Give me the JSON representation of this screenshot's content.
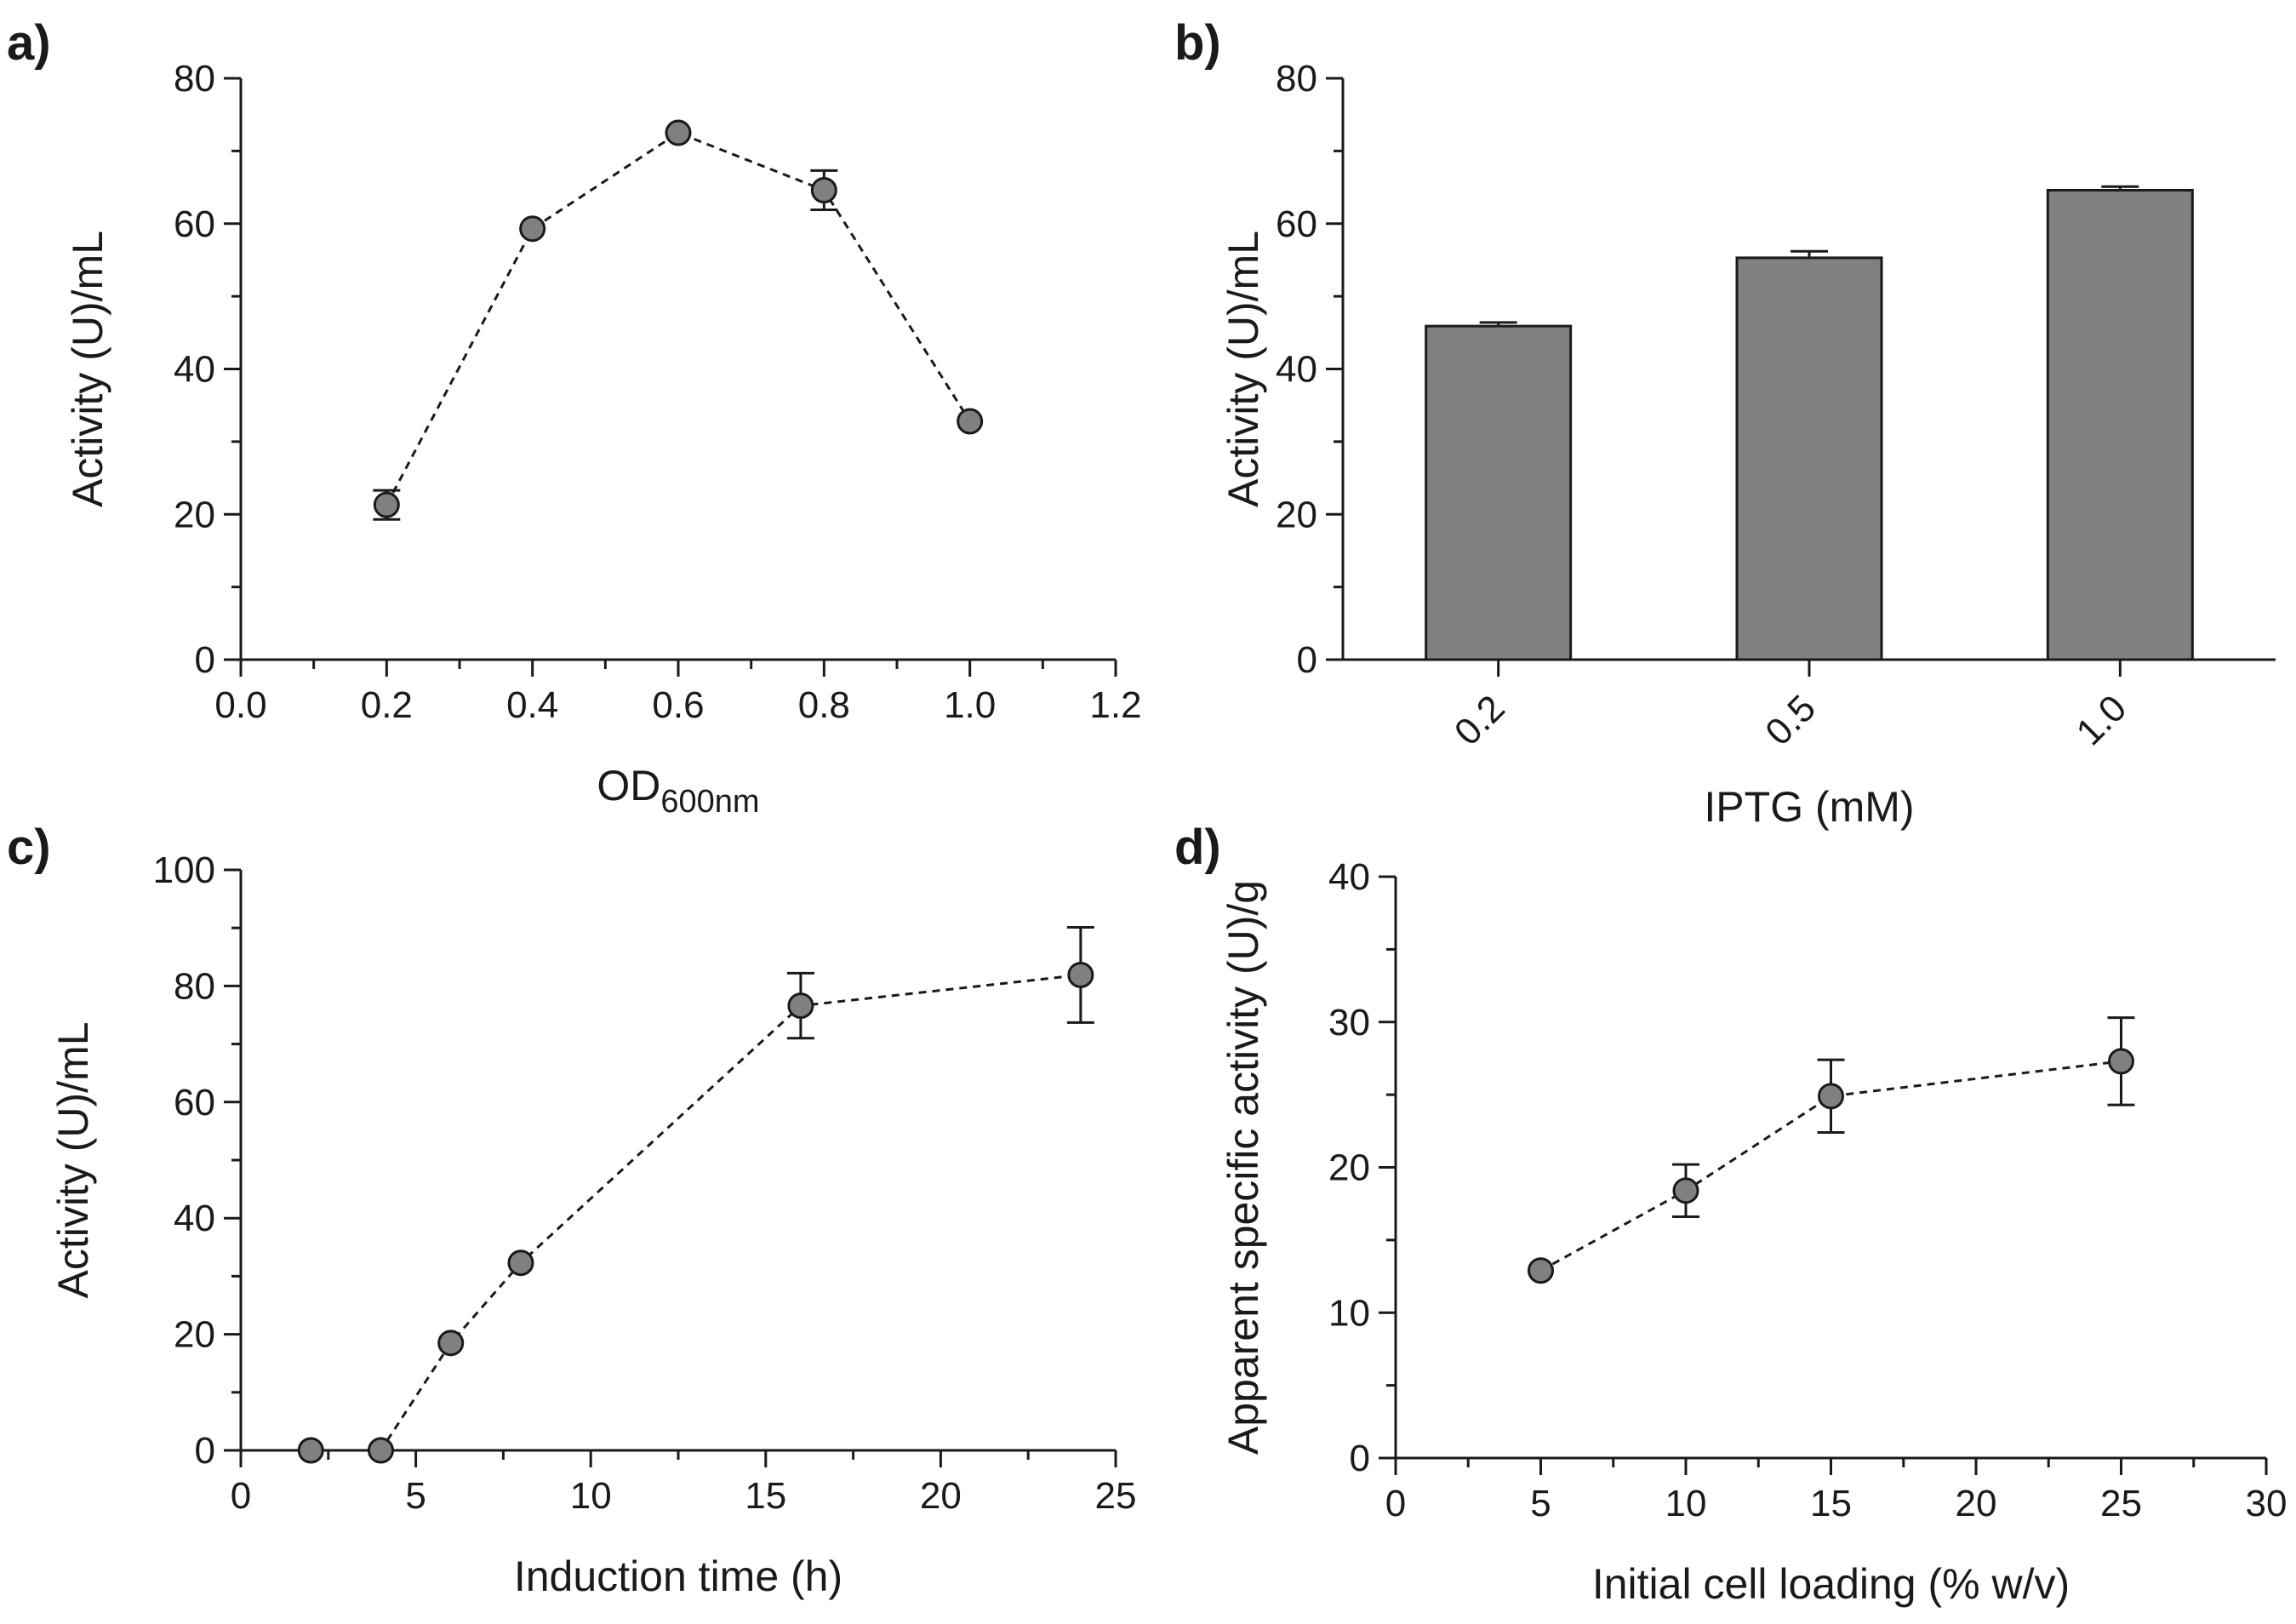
{
  "chart_data": [
    {
      "id": "a",
      "panel_label": "a)",
      "type": "line",
      "marker": "circle",
      "line_style": "dashed",
      "xlabel": "OD",
      "xlabel_sub": "600nm",
      "ylabel": "Activity (U)/mL",
      "xlim": [
        0,
        1.2
      ],
      "ylim": [
        0,
        80
      ],
      "xticks": [
        0,
        0.2,
        0.4,
        0.6,
        0.8,
        1.0,
        1.2
      ],
      "xtick_labels": [
        "0.0",
        "0.2",
        "0.4",
        "0.6",
        "0.8",
        "1.0",
        "1.2"
      ],
      "yticks": [
        0,
        20,
        40,
        60,
        80
      ],
      "ytick_labels": [
        "0",
        "20",
        "40",
        "60",
        "80"
      ],
      "x": [
        0.2,
        0.4,
        0.6,
        0.8,
        1.0
      ],
      "y": [
        21.3,
        59.3,
        72.5,
        64.6,
        32.8
      ],
      "err": [
        2.0,
        0.8,
        0.8,
        2.7,
        0.5
      ]
    },
    {
      "id": "b",
      "panel_label": "b)",
      "type": "bar",
      "xlabel": "IPTG (mM)",
      "ylabel": "Activity (U)/mL",
      "ylim": [
        0,
        80
      ],
      "yticks": [
        0,
        20,
        40,
        60,
        80
      ],
      "ytick_labels": [
        "0",
        "20",
        "40",
        "60",
        "80"
      ],
      "categories": [
        "0.2",
        "0.5",
        "1.0"
      ],
      "values": [
        45.9,
        55.3,
        64.6
      ],
      "err": [
        0.5,
        0.9,
        0.5
      ]
    },
    {
      "id": "c",
      "panel_label": "c)",
      "type": "line",
      "marker": "circle",
      "line_style": "dashed",
      "xlabel": "Induction time (h)",
      "ylabel": "Activity (U)/mL",
      "xlim": [
        0,
        25
      ],
      "ylim": [
        0,
        100
      ],
      "xticks": [
        0,
        5,
        10,
        15,
        20,
        25
      ],
      "xtick_labels": [
        "0",
        "5",
        "10",
        "15",
        "20",
        "25"
      ],
      "yticks": [
        0,
        20,
        40,
        60,
        80,
        100
      ],
      "ytick_labels": [
        "0",
        "20",
        "40",
        "60",
        "80",
        "100"
      ],
      "x": [
        2,
        4,
        6,
        8,
        16,
        24
      ],
      "y": [
        0,
        0,
        18.5,
        32.3,
        76.6,
        81.9
      ],
      "err": [
        0,
        0,
        0,
        0,
        5.6,
        8.2
      ]
    },
    {
      "id": "d",
      "panel_label": "d)",
      "type": "line",
      "marker": "circle",
      "line_style": "dashed",
      "xlabel": "Initial cell loading (% w/v)",
      "ylabel": "Apparent specific activity (U)/g",
      "xlim": [
        0,
        30
      ],
      "ylim": [
        0,
        40
      ],
      "xticks": [
        0,
        5,
        10,
        15,
        20,
        25,
        30
      ],
      "xtick_labels": [
        "0",
        "5",
        "10",
        "15",
        "20",
        "25",
        "30"
      ],
      "yticks": [
        0,
        10,
        20,
        30,
        40
      ],
      "ytick_labels": [
        "0",
        "10",
        "20",
        "30",
        "40"
      ],
      "x": [
        5,
        10,
        15,
        25
      ],
      "y": [
        12.9,
        18.4,
        24.9,
        27.3
      ],
      "err": [
        0.8,
        1.8,
        2.5,
        3.0
      ]
    }
  ]
}
